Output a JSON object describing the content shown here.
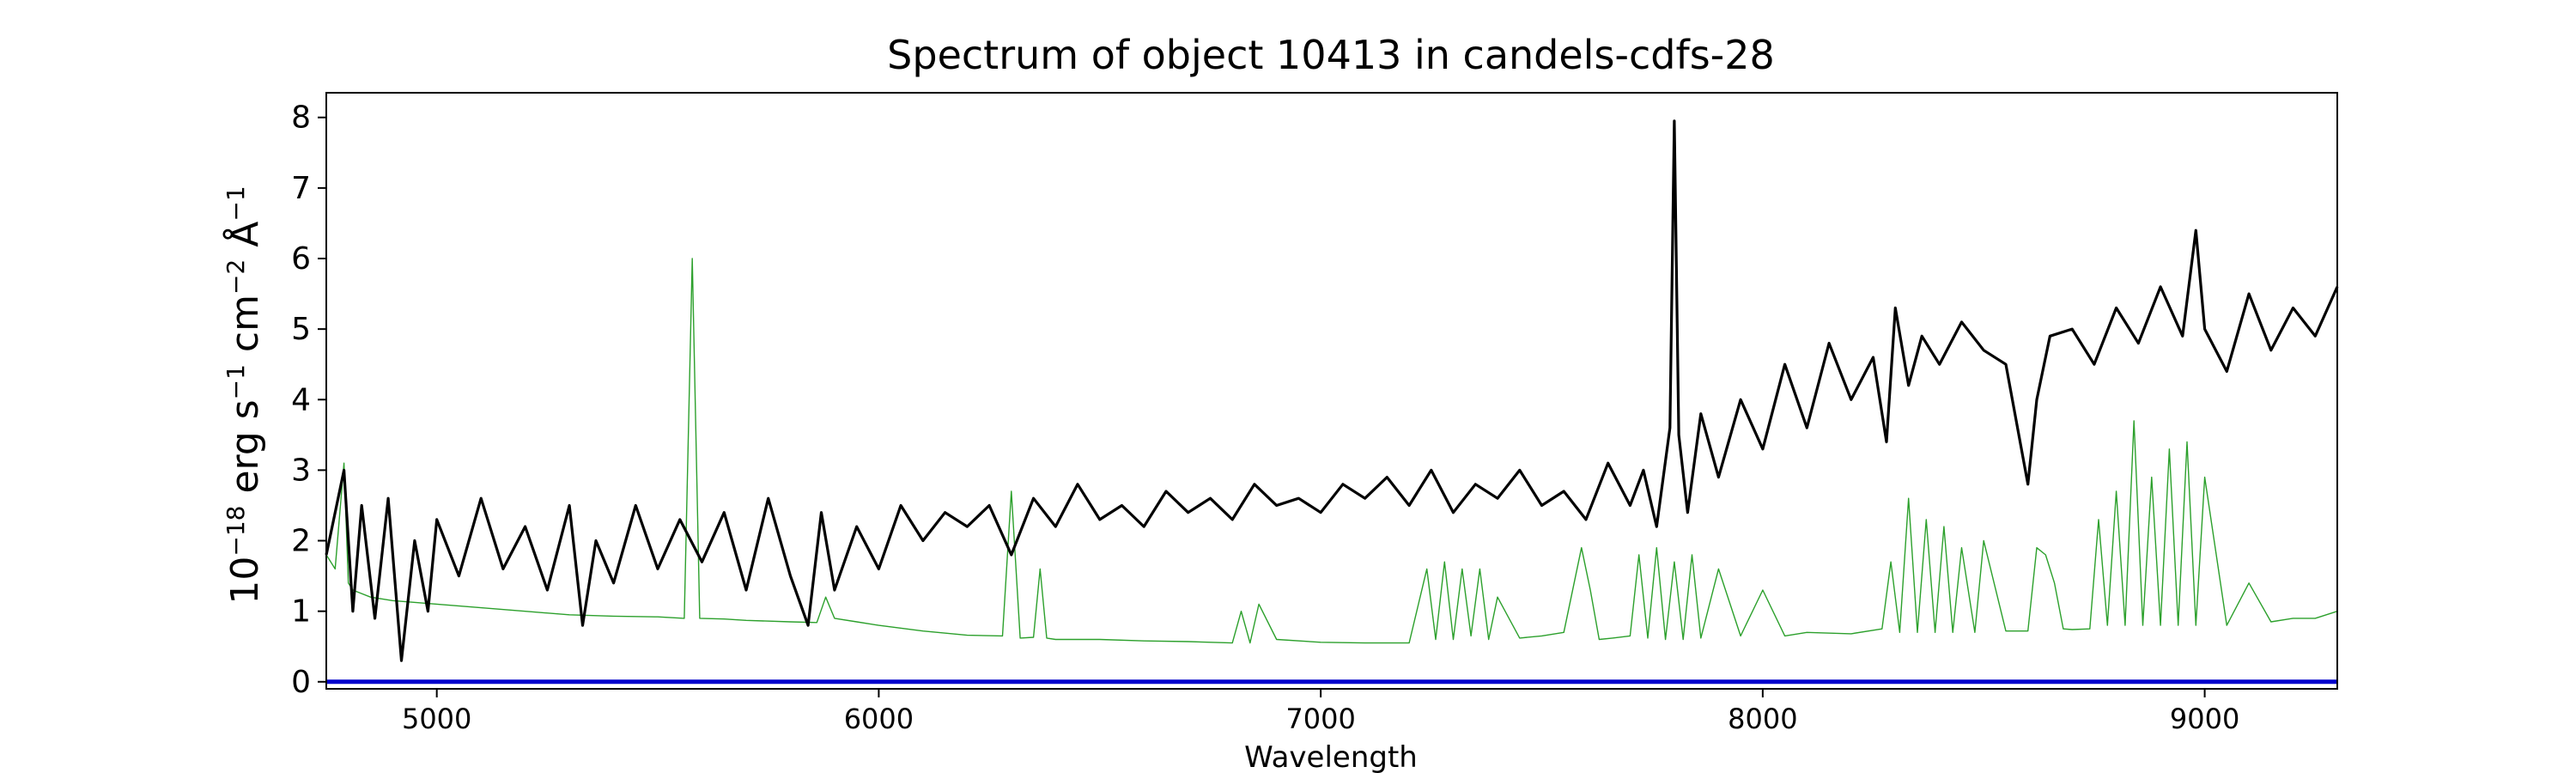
{
  "chart_data": {
    "type": "line",
    "title": "Spectrum of object 10413 in candels-cdfs-28",
    "xlabel": "Wavelength",
    "ylabel_parts": {
      "base": "10",
      "exp": "−18",
      "erg": " erg s",
      "s_exp": "−1",
      "cm": " cm",
      "cm_exp": "−2",
      "ang": " Å",
      "ang_exp": "−1"
    },
    "xlim": [
      4750,
      9300
    ],
    "ylim": [
      -0.1,
      8.35
    ],
    "xticks": [
      5000,
      6000,
      7000,
      8000,
      9000
    ],
    "yticks": [
      0,
      1,
      2,
      3,
      4,
      5,
      6,
      7,
      8
    ],
    "grid": false,
    "series": [
      {
        "role": "flux",
        "color": "#000000",
        "x": [
          4750,
          4790,
          4810,
          4830,
          4860,
          4890,
          4920,
          4950,
          4980,
          5000,
          5050,
          5100,
          5150,
          5200,
          5250,
          5300,
          5330,
          5360,
          5400,
          5450,
          5500,
          5550,
          5600,
          5650,
          5700,
          5750,
          5800,
          5840,
          5870,
          5900,
          5950,
          6000,
          6050,
          6100,
          6150,
          6200,
          6250,
          6300,
          6350,
          6400,
          6450,
          6500,
          6550,
          6600,
          6650,
          6700,
          6750,
          6800,
          6850,
          6900,
          6950,
          7000,
          7050,
          7100,
          7150,
          7200,
          7250,
          7300,
          7350,
          7400,
          7450,
          7500,
          7550,
          7600,
          7650,
          7700,
          7730,
          7760,
          7790,
          7800,
          7810,
          7830,
          7860,
          7900,
          7950,
          8000,
          8050,
          8100,
          8150,
          8200,
          8250,
          8280,
          8300,
          8330,
          8360,
          8400,
          8450,
          8500,
          8550,
          8600,
          8620,
          8650,
          8700,
          8750,
          8800,
          8850,
          8900,
          8950,
          8980,
          9000,
          9050,
          9100,
          9150,
          9200,
          9250,
          9300
        ],
        "values": [
          1.8,
          3.0,
          1.0,
          2.5,
          0.9,
          2.6,
          0.3,
          2.0,
          1.0,
          2.3,
          1.5,
          2.6,
          1.6,
          2.2,
          1.3,
          2.5,
          0.8,
          2.0,
          1.4,
          2.5,
          1.6,
          2.3,
          1.7,
          2.4,
          1.3,
          2.6,
          1.5,
          0.8,
          2.4,
          1.3,
          2.2,
          1.6,
          2.5,
          2.0,
          2.4,
          2.2,
          2.5,
          1.8,
          2.6,
          2.2,
          2.8,
          2.3,
          2.5,
          2.2,
          2.7,
          2.4,
          2.6,
          2.3,
          2.8,
          2.5,
          2.6,
          2.4,
          2.8,
          2.6,
          2.9,
          2.5,
          3.0,
          2.4,
          2.8,
          2.6,
          3.0,
          2.5,
          2.7,
          2.3,
          3.1,
          2.5,
          3.0,
          2.2,
          3.6,
          7.95,
          3.5,
          2.4,
          3.8,
          2.9,
          4.0,
          3.3,
          4.5,
          3.6,
          4.8,
          4.0,
          4.6,
          3.4,
          5.3,
          4.2,
          4.9,
          4.5,
          5.1,
          4.7,
          4.5,
          2.8,
          4.0,
          4.9,
          5.0,
          4.5,
          5.3,
          4.8,
          5.6,
          4.9,
          6.4,
          5.0,
          4.4,
          5.5,
          4.7,
          5.3,
          4.9,
          5.6
        ]
      },
      {
        "role": "model",
        "color": "#2ca02c",
        "x": [
          4750,
          4770,
          4790,
          4800,
          4810,
          4830,
          4850,
          4900,
          5000,
          5100,
          5200,
          5300,
          5400,
          5500,
          5560,
          5578,
          5595,
          5650,
          5700,
          5800,
          5860,
          5880,
          5900,
          5950,
          6000,
          6100,
          6200,
          6280,
          6300,
          6320,
          6350,
          6365,
          6380,
          6400,
          6500,
          6600,
          6700,
          6800,
          6820,
          6840,
          6860,
          6900,
          7000,
          7100,
          7200,
          7240,
          7260,
          7280,
          7300,
          7320,
          7340,
          7360,
          7380,
          7400,
          7450,
          7500,
          7550,
          7590,
          7610,
          7630,
          7660,
          7700,
          7720,
          7740,
          7760,
          7780,
          7800,
          7820,
          7840,
          7860,
          7900,
          7950,
          8000,
          8050,
          8100,
          8200,
          8270,
          8290,
          8310,
          8330,
          8350,
          8370,
          8390,
          8410,
          8430,
          8450,
          8480,
          8500,
          8550,
          8600,
          8620,
          8640,
          8660,
          8680,
          8700,
          8740,
          8760,
          8780,
          8800,
          8820,
          8840,
          8860,
          8880,
          8900,
          8920,
          8940,
          8960,
          8980,
          9000,
          9050,
          9100,
          9150,
          9200,
          9250,
          9300
        ],
        "values": [
          1.8,
          1.6,
          3.1,
          1.4,
          1.3,
          1.25,
          1.2,
          1.15,
          1.1,
          1.05,
          1.0,
          0.95,
          0.93,
          0.92,
          0.9,
          6.0,
          0.9,
          0.89,
          0.87,
          0.85,
          0.84,
          1.2,
          0.9,
          0.85,
          0.8,
          0.72,
          0.66,
          0.65,
          2.7,
          0.62,
          0.63,
          1.6,
          0.62,
          0.6,
          0.6,
          0.58,
          0.57,
          0.55,
          1.0,
          0.55,
          1.1,
          0.6,
          0.56,
          0.55,
          0.55,
          1.6,
          0.6,
          1.7,
          0.6,
          1.6,
          0.65,
          1.6,
          0.6,
          1.2,
          0.62,
          0.65,
          0.7,
          1.9,
          1.3,
          0.6,
          0.62,
          0.65,
          1.8,
          0.62,
          1.9,
          0.6,
          1.7,
          0.6,
          1.8,
          0.62,
          1.6,
          0.65,
          1.3,
          0.65,
          0.7,
          0.68,
          0.75,
          1.7,
          0.7,
          2.6,
          0.7,
          2.3,
          0.7,
          2.2,
          0.7,
          1.9,
          0.7,
          2.0,
          0.72,
          0.72,
          1.9,
          1.8,
          1.4,
          0.75,
          0.74,
          0.75,
          2.3,
          0.8,
          2.7,
          0.8,
          3.7,
          0.8,
          2.9,
          0.8,
          3.3,
          0.8,
          3.4,
          0.8,
          2.9,
          0.8,
          1.4,
          0.85,
          0.9,
          0.9,
          1.0
        ]
      },
      {
        "role": "zero",
        "color": "#0000cc",
        "x": [
          4750,
          9300
        ],
        "values": [
          0,
          0
        ]
      }
    ]
  }
}
